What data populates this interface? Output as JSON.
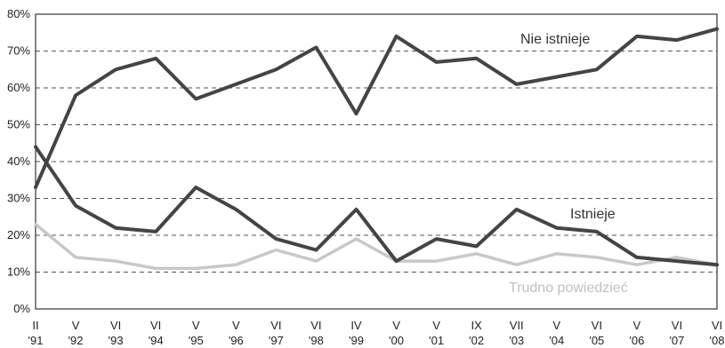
{
  "chart_data": {
    "type": "line",
    "title": "",
    "xlabel": "",
    "ylabel": "",
    "ylim": [
      0,
      80
    ],
    "y_unit": "%",
    "yticks": [
      0,
      10,
      20,
      30,
      40,
      50,
      60,
      70,
      80
    ],
    "ytick_labels": [
      "0%",
      "10%",
      "20%",
      "30%",
      "40%",
      "50%",
      "60%",
      "70%",
      "80%"
    ],
    "grid": "horizontal dashed",
    "x_months": [
      "II",
      "V",
      "VI",
      "VI",
      "V",
      "V",
      "VI",
      "VI",
      "IV",
      "V",
      "V",
      "IX",
      "VII",
      "V",
      "VI",
      "V",
      "VI",
      "VI"
    ],
    "x_years": [
      "'91",
      "'92",
      "'93",
      "'94",
      "'95",
      "'96",
      "'97",
      "'98",
      "'99",
      "'00",
      "'01",
      "'02",
      "'03",
      "'04",
      "'05",
      "'06",
      "'07",
      "'08"
    ],
    "series": [
      {
        "name": "Nie istnieje",
        "color": "#444444",
        "values": [
          33,
          58,
          65,
          68,
          57,
          61,
          65,
          71,
          53,
          74,
          67,
          68,
          61,
          63,
          65,
          74,
          73,
          76
        ]
      },
      {
        "name": "Istnieje",
        "color": "#444444",
        "values": [
          44,
          28,
          22,
          21,
          33,
          27,
          19,
          16,
          27,
          13,
          19,
          17,
          27,
          22,
          21,
          14,
          13,
          12
        ]
      },
      {
        "name": "Trudno powiedzieć",
        "color": "#c8c8c8",
        "values": [
          23,
          14,
          13,
          11,
          11,
          12,
          16,
          13,
          19,
          13,
          13,
          15,
          12,
          15,
          14,
          12,
          14,
          12
        ]
      }
    ]
  }
}
